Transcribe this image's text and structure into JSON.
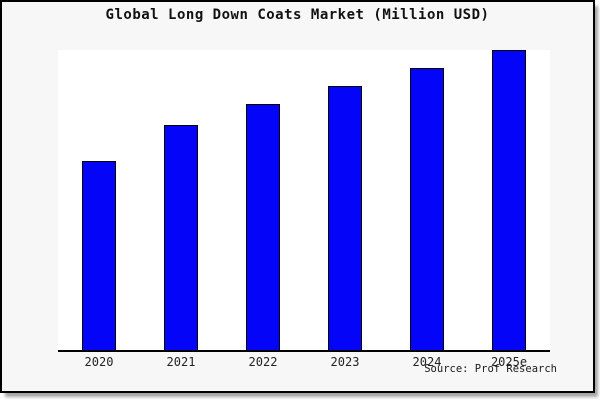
{
  "colors": {
    "figure_background": "#f7f7f7",
    "plot_background": "#ffffff",
    "bar_fill": "#0404f8",
    "bar_border": "#000000",
    "axis_line": "#000000",
    "frame_border": "#000000",
    "text": "#111111"
  },
  "source_note": "Source: Prof Research",
  "chart_data": {
    "type": "bar",
    "title": "Global Long Down Coats Market (Million USD)",
    "categories": [
      "2020",
      "2021",
      "2022",
      "2023",
      "2024",
      "2025e"
    ],
    "values": [
      63,
      75,
      82,
      88,
      94,
      100
    ],
    "xlabel": "",
    "ylabel": "",
    "ylim": [
      0,
      100
    ],
    "value_scale_note": "relative index estimated from bar heights; no y-axis tick labels shown",
    "grid": false,
    "legend_position": "none",
    "annotations": [
      "Source: Prof Research"
    ]
  }
}
